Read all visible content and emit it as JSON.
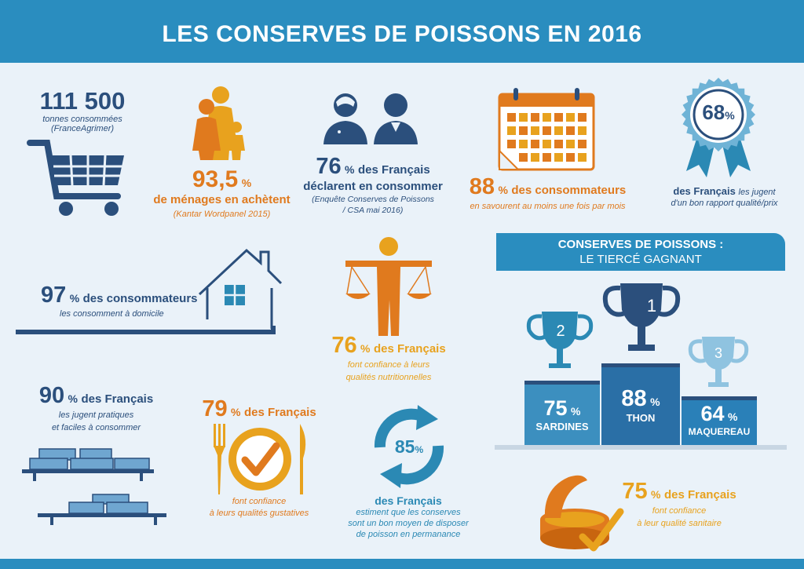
{
  "header": {
    "title": "LES CONSERVES DE POISSONS EN 2016"
  },
  "colors": {
    "header_blue": "#2a8dbf",
    "navy": "#2b4f7c",
    "orange": "#e07a1e",
    "gold": "#e8a21e",
    "background": "#eaf2f9"
  },
  "stats": {
    "tonnes": {
      "value": "111 500",
      "label": "tonnes consommées",
      "source": "(FranceAgrimer)"
    },
    "menages": {
      "value": "93,5",
      "unit": "%",
      "label": "de ménages en achètent",
      "source": "(Kantar Wordpanel 2015)"
    },
    "francais_consommer": {
      "value": "76",
      "unit": "%",
      "label1": "des Français",
      "label2": "déclarent en consommer",
      "source1": "(Enquête Conserves de Poissons",
      "source2": "/ CSA mai 2016)"
    },
    "semaine": {
      "value": "88",
      "unit": "%",
      "label": "des consommateurs",
      "sub": "en savourent au moins une fois par mois"
    },
    "qualite_prix": {
      "value": "68",
      "unit": "%",
      "label": "des Français",
      "label_it": "les jugent",
      "sub": "d'un bon rapport qualité/prix"
    },
    "domicile": {
      "value": "97",
      "unit": "%",
      "label": "des consommateurs",
      "sub": "les consomment à domicile"
    },
    "nutrition": {
      "value": "76",
      "unit": "%",
      "label": "des Français",
      "sub1": "font confiance à leurs",
      "sub2": "qualités nutritionnelles"
    },
    "pratiques": {
      "value": "90",
      "unit": "%",
      "label": "des Français",
      "sub1": "les jugent pratiques",
      "sub2": "et faciles à consommer"
    },
    "gustatives": {
      "value": "79",
      "unit": "%",
      "label": "des Français",
      "sub1": "font confiance",
      "sub2": "à leurs qualités gustatives"
    },
    "permanence": {
      "value": "85",
      "unit": "%",
      "label": "des Français",
      "sub1": "estiment que les conserves",
      "sub2": "sont un bon moyen de disposer",
      "sub3": "de poisson en permanance"
    },
    "sanitaire": {
      "value": "75",
      "unit": "%",
      "label": "des Français",
      "sub1": "font confiance",
      "sub2": "à leur qualité sanitaire"
    }
  },
  "tierce": {
    "title1": "CONSERVES DE POISSONS :",
    "title2": "LE TIERCÉ GAGNANT",
    "podium": [
      {
        "rank": "1",
        "value": "88",
        "unit": "%",
        "name": "THON"
      },
      {
        "rank": "2",
        "value": "75",
        "unit": "%",
        "name": "SARDINES"
      },
      {
        "rank": "3",
        "value": "64",
        "unit": "%",
        "name": "MAQUEREAU"
      }
    ]
  },
  "icons": [
    "shopping-cart-icon",
    "family-icon",
    "people-icon",
    "calendar-icon",
    "award-ribbon-icon",
    "house-icon",
    "scale-person-icon",
    "shelf-cans-icon",
    "plate-check-icon",
    "cycle-arrows-icon",
    "trophy-icon",
    "open-can-icon"
  ]
}
